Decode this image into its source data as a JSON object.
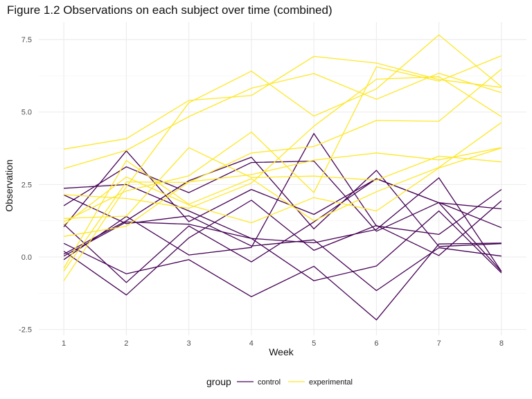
{
  "chart_data": {
    "type": "line",
    "title": "Figure 1.2 Observations on each subject over time (combined)",
    "xlabel": "Week",
    "ylabel": "Observation",
    "x": [
      1,
      2,
      3,
      4,
      5,
      6,
      7,
      8
    ],
    "xticks": [
      "1",
      "2",
      "3",
      "4",
      "5",
      "6",
      "7",
      "8"
    ],
    "xlim": [
      0.6,
      8.4
    ],
    "yticks": [
      -2.5,
      0.0,
      2.5,
      5.0,
      7.5
    ],
    "ytick_labels": [
      "-2.5",
      "0.0",
      "2.5",
      "5.0",
      "7.5"
    ],
    "ylim": [
      -2.7,
      8.1
    ],
    "grid": true,
    "legend": {
      "title": "group",
      "position": "bottom",
      "entries": [
        {
          "label": "control",
          "color": "#440154"
        },
        {
          "label": "experimental",
          "color": "#FDE725"
        }
      ]
    },
    "series": [
      {
        "group": "control",
        "values": [
          0.2,
          -1.31,
          0.66,
          1.96,
          0.23,
          1.09,
          0.05,
          1.94
        ]
      },
      {
        "group": "control",
        "values": [
          1.13,
          -0.88,
          1.07,
          -0.17,
          1.21,
          2.7,
          1.87,
          1.66
        ]
      },
      {
        "group": "control",
        "values": [
          1.77,
          3.11,
          2.22,
          3.26,
          3.31,
          0.89,
          1.88,
          1.01
        ]
      },
      {
        "group": "control",
        "values": [
          1.04,
          3.66,
          1.22,
          2.33,
          1.47,
          2.7,
          1.87,
          -0.5
        ]
      },
      {
        "group": "control",
        "values": [
          0.47,
          -0.58,
          -0.09,
          -1.37,
          -0.32,
          -2.17,
          0.45,
          0.48
        ]
      },
      {
        "group": "control",
        "values": [
          2.37,
          2.5,
          1.59,
          0.64,
          0.49,
          0.95,
          2.73,
          -0.5
        ]
      },
      {
        "group": "control",
        "values": [
          0.03,
          1.21,
          1.13,
          0.64,
          -0.82,
          -0.31,
          1.59,
          -0.55
        ]
      },
      {
        "group": "control",
        "values": [
          -0.09,
          1.4,
          0.07,
          0.33,
          4.26,
          1.07,
          0.78,
          2.33
        ]
      },
      {
        "group": "control",
        "values": [
          2.14,
          1.15,
          1.42,
          0.38,
          0.59,
          -1.16,
          0.32,
          0.03
        ]
      },
      {
        "group": "control",
        "values": [
          0.1,
          1.25,
          2.63,
          3.44,
          0.97,
          2.99,
          0.36,
          0.46
        ]
      },
      {
        "group": "experimental",
        "values": [
          3.72,
          4.08,
          5.4,
          5.57,
          6.92,
          6.69,
          6.12,
          5.85
        ]
      },
      {
        "group": "experimental",
        "values": [
          3.05,
          3.68,
          4.84,
          5.82,
          6.33,
          5.44,
          6.34,
          5.67
        ]
      },
      {
        "group": "experimental",
        "values": [
          1.22,
          2.28,
          2.8,
          4.31,
          2.22,
          6.56,
          6.07,
          6.94
        ]
      },
      {
        "group": "experimental",
        "values": [
          -0.82,
          2.42,
          5.32,
          6.41,
          4.86,
          5.8,
          7.66,
          5.87
        ]
      },
      {
        "group": "experimental",
        "values": [
          1.33,
          1.41,
          3.77,
          2.74,
          2.79,
          2.65,
          3.48,
          3.28
        ]
      },
      {
        "group": "experimental",
        "values": [
          2.15,
          2.02,
          1.68,
          2.55,
          4.51,
          6.13,
          6.22,
          4.84
        ]
      },
      {
        "group": "experimental",
        "values": [
          -0.49,
          2.59,
          2.57,
          3.59,
          3.81,
          4.71,
          4.68,
          6.48
        ]
      },
      {
        "group": "experimental",
        "values": [
          1.11,
          2.76,
          1.8,
          1.18,
          2.05,
          1.59,
          3.07,
          3.76
        ]
      },
      {
        "group": "experimental",
        "values": [
          0.71,
          1.06,
          2.59,
          2.84,
          3.34,
          3.59,
          3.35,
          3.77
        ]
      },
      {
        "group": "experimental",
        "values": [
          -0.39,
          3.33,
          1.82,
          2.7,
          1.25,
          2.25,
          3.09,
          4.64
        ]
      }
    ]
  }
}
